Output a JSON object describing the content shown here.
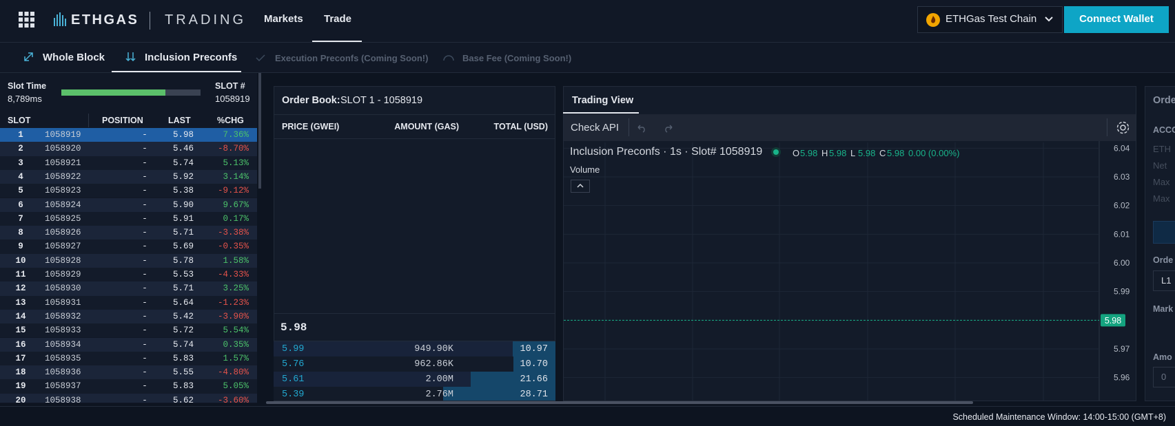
{
  "header": {
    "brand": "ETHGAS",
    "product": "TRADING",
    "nav": [
      "Markets",
      "Trade"
    ],
    "chain": "ETHGas Test Chain",
    "connect": "Connect Wallet"
  },
  "tabs": [
    "Whole Block",
    "Inclusion Preconfs",
    "Execution Preconfs (Coming Soon!)",
    "Base Fee (Coming Soon!)"
  ],
  "slot_panel": {
    "slot_time_label": "Slot Time",
    "slot_time": "8,789ms",
    "slot_label": "SLOT #",
    "slot": "1058919",
    "columns": [
      "SLOT",
      "POSITION",
      "LAST",
      "%CHG"
    ],
    "rows": [
      [
        "1",
        "1058919",
        "-",
        "5.98",
        "7.36%"
      ],
      [
        "2",
        "1058920",
        "-",
        "5.46",
        "-8.70%"
      ],
      [
        "3",
        "1058921",
        "-",
        "5.74",
        "5.13%"
      ],
      [
        "4",
        "1058922",
        "-",
        "5.92",
        "3.14%"
      ],
      [
        "5",
        "1058923",
        "-",
        "5.38",
        "-9.12%"
      ],
      [
        "6",
        "1058924",
        "-",
        "5.90",
        "9.67%"
      ],
      [
        "7",
        "1058925",
        "-",
        "5.91",
        "0.17%"
      ],
      [
        "8",
        "1058926",
        "-",
        "5.71",
        "-3.38%"
      ],
      [
        "9",
        "1058927",
        "-",
        "5.69",
        "-0.35%"
      ],
      [
        "10",
        "1058928",
        "-",
        "5.78",
        "1.58%"
      ],
      [
        "11",
        "1058929",
        "-",
        "5.53",
        "-4.33%"
      ],
      [
        "12",
        "1058930",
        "-",
        "5.71",
        "3.25%"
      ],
      [
        "13",
        "1058931",
        "-",
        "5.64",
        "-1.23%"
      ],
      [
        "14",
        "1058932",
        "-",
        "5.42",
        "-3.90%"
      ],
      [
        "15",
        "1058933",
        "-",
        "5.72",
        "5.54%"
      ],
      [
        "16",
        "1058934",
        "-",
        "5.74",
        "0.35%"
      ],
      [
        "17",
        "1058935",
        "-",
        "5.83",
        "1.57%"
      ],
      [
        "18",
        "1058936",
        "-",
        "5.55",
        "-4.80%"
      ],
      [
        "19",
        "1058937",
        "-",
        "5.83",
        "5.05%"
      ],
      [
        "20",
        "1058938",
        "-",
        "5.62",
        "-3.60%"
      ]
    ]
  },
  "order_book": {
    "title": "Order Book:",
    "slot": "SLOT 1 - 1058919",
    "columns": [
      "PRICE (GWEI)",
      "AMOUNT (GAS)",
      "TOTAL (USD)"
    ],
    "last": "5.98",
    "rows": [
      [
        "5.99",
        "949.90K",
        "10.97"
      ],
      [
        "5.76",
        "962.86K",
        "10.70"
      ],
      [
        "5.61",
        "2.00M",
        "21.66"
      ],
      [
        "5.39",
        "2.76M",
        "28.71"
      ]
    ]
  },
  "trading_view": {
    "tab": "Trading View",
    "check_api": "Check API",
    "title": "Inclusion Preconfs · 1s · Slot# 1058919",
    "ohlc": [
      {
        "label": "O",
        "value": "5.98"
      },
      {
        "label": "H",
        "value": "5.98"
      },
      {
        "label": "L",
        "value": "5.98"
      },
      {
        "label": "C",
        "value": "5.98"
      }
    ],
    "change": "0.00 (0.00%)",
    "volume": "Volume",
    "chart": {
      "type": "line",
      "ylim": [
        5.952,
        6.042
      ],
      "yticks": [
        6.04,
        6.03,
        6.02,
        6.01,
        {
          "value": 6,
          "label": "6.00"
        },
        5.99,
        5.97,
        5.96
      ],
      "last": 5.98,
      "grid": true
    }
  },
  "order_panel": {
    "title": "Orde",
    "account": "ACCO",
    "fields": [
      "ETH",
      "Net",
      "Max",
      "Max"
    ],
    "order_label": "Orde",
    "order_value": "L1",
    "market_label": "Mark",
    "amount_label": "Amo",
    "amount_value": "0"
  },
  "footer": "Scheduled Maintenance Window: 14:00-15:00 (GMT+8)"
}
